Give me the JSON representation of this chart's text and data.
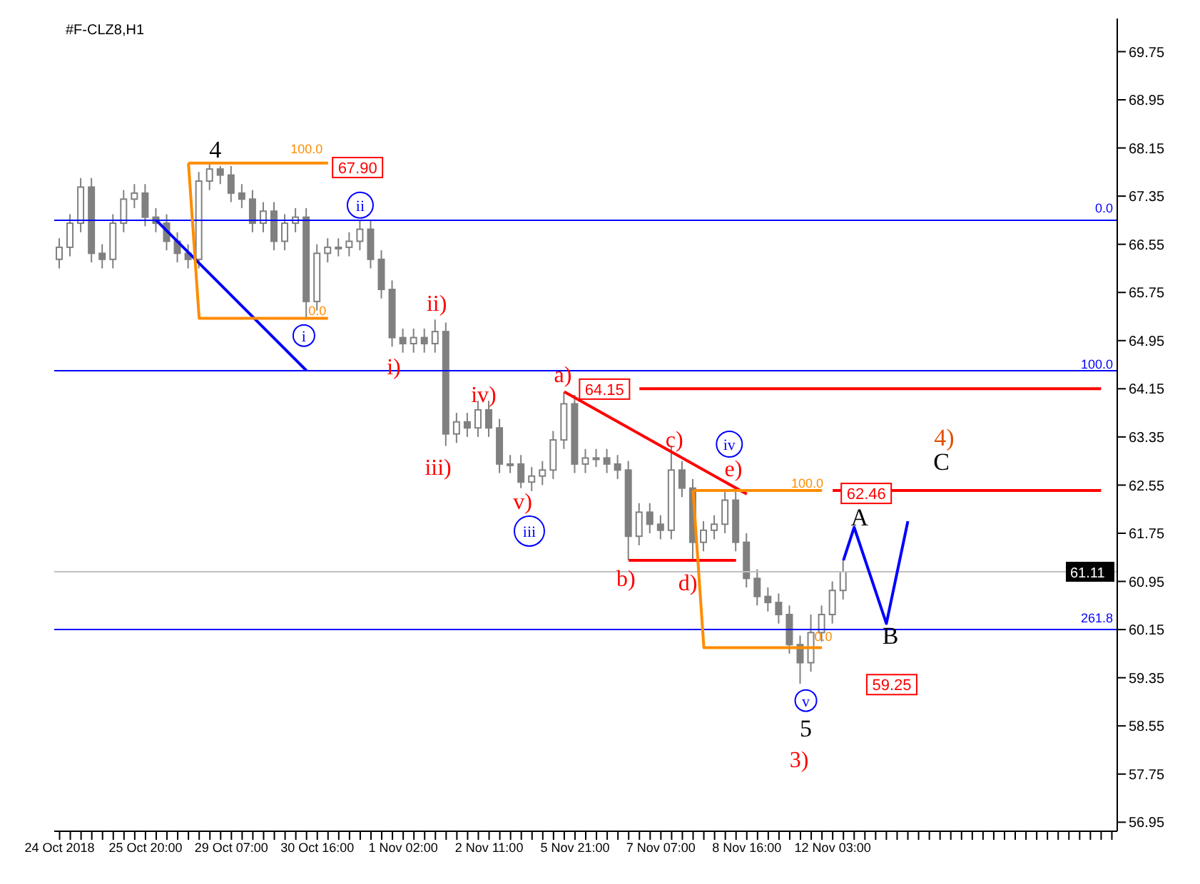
{
  "chart_data": {
    "type": "candlestick",
    "title": "#F-CLZ8,H1",
    "color": "#808080",
    "categories": [
      "24 Oct 2018",
      null,
      null,
      null,
      null,
      null,
      null,
      null,
      "25 Oct 20:00",
      null,
      null,
      null,
      null,
      null,
      null,
      null,
      "29 Oct 07:00",
      null,
      null,
      null,
      null,
      null,
      null,
      null,
      "30 Oct 16:00",
      null,
      null,
      null,
      null,
      null,
      null,
      null,
      "1 Nov 02:00",
      null,
      null,
      null,
      null,
      null,
      null,
      null,
      "2 Nov 11:00",
      null,
      null,
      null,
      null,
      null,
      null,
      null,
      "5 Nov 21:00",
      null,
      null,
      null,
      null,
      null,
      null,
      null,
      "7 Nov 07:00",
      null,
      null,
      null,
      null,
      null,
      null,
      null,
      "8 Nov 16:00",
      null,
      null,
      null,
      null,
      null,
      null,
      null,
      "12 Nov 03:00",
      null,
      null,
      null,
      null,
      null,
      null,
      null,
      null,
      null,
      null,
      null,
      null,
      null,
      null,
      null,
      null,
      null,
      null,
      null,
      null,
      null,
      null,
      null,
      null,
      null,
      null
    ],
    "ohlc": [
      [
        66.3,
        66.65,
        66.15,
        66.5
      ],
      [
        66.5,
        67.05,
        66.35,
        66.9
      ],
      [
        66.9,
        67.65,
        66.75,
        67.5
      ],
      [
        67.5,
        67.65,
        66.25,
        66.4
      ],
      [
        66.4,
        66.55,
        66.15,
        66.3
      ],
      [
        66.3,
        67.05,
        66.15,
        66.9
      ],
      [
        66.9,
        67.45,
        66.75,
        67.3
      ],
      [
        67.3,
        67.55,
        67.15,
        67.4
      ],
      [
        67.4,
        67.55,
        66.85,
        67.0
      ],
      [
        67.0,
        67.15,
        66.75,
        66.9
      ],
      [
        66.9,
        67.05,
        66.45,
        66.6
      ],
      [
        66.6,
        66.75,
        66.25,
        66.4
      ],
      [
        66.4,
        66.55,
        66.15,
        66.3
      ],
      [
        66.3,
        67.75,
        66.15,
        67.6
      ],
      [
        67.6,
        67.9,
        67.45,
        67.8
      ],
      [
        67.8,
        67.85,
        67.55,
        67.7
      ],
      [
        67.7,
        67.85,
        67.25,
        67.4
      ],
      [
        67.4,
        67.55,
        67.15,
        67.3
      ],
      [
        67.3,
        67.45,
        66.75,
        66.9
      ],
      [
        66.9,
        67.25,
        66.75,
        67.1
      ],
      [
        67.1,
        67.25,
        66.45,
        66.6
      ],
      [
        66.6,
        67.05,
        66.45,
        66.9
      ],
      [
        66.9,
        67.15,
        66.75,
        67.0
      ],
      [
        67.0,
        67.15,
        65.3,
        65.6
      ],
      [
        65.6,
        66.55,
        65.45,
        66.4
      ],
      [
        66.4,
        66.65,
        66.25,
        66.5
      ],
      [
        66.5,
        66.65,
        66.35,
        66.5
      ],
      [
        66.5,
        66.75,
        66.35,
        66.6
      ],
      [
        66.6,
        66.95,
        66.45,
        66.8
      ],
      [
        66.8,
        66.95,
        66.15,
        66.3
      ],
      [
        66.3,
        66.45,
        65.65,
        65.8
      ],
      [
        65.8,
        65.95,
        64.85,
        65.0
      ],
      [
        65.0,
        65.15,
        64.75,
        64.9
      ],
      [
        64.9,
        65.15,
        64.75,
        65.0
      ],
      [
        65.0,
        65.15,
        64.75,
        64.9
      ],
      [
        64.9,
        65.3,
        64.75,
        65.1
      ],
      [
        65.1,
        65.25,
        63.2,
        63.4
      ],
      [
        63.4,
        63.75,
        63.25,
        63.6
      ],
      [
        63.6,
        63.75,
        63.35,
        63.5
      ],
      [
        63.5,
        63.95,
        63.35,
        63.8
      ],
      [
        63.8,
        63.95,
        63.35,
        63.5
      ],
      [
        63.5,
        63.65,
        62.75,
        62.9
      ],
      [
        62.9,
        63.05,
        62.75,
        62.9
      ],
      [
        62.9,
        63.05,
        62.5,
        62.6
      ],
      [
        62.6,
        62.85,
        62.45,
        62.7
      ],
      [
        62.7,
        62.95,
        62.55,
        62.8
      ],
      [
        62.8,
        63.45,
        62.65,
        63.3
      ],
      [
        63.3,
        64.1,
        63.15,
        63.9
      ],
      [
        63.9,
        64.05,
        62.75,
        62.9
      ],
      [
        62.9,
        63.15,
        62.75,
        63.0
      ],
      [
        63.0,
        63.15,
        62.85,
        63.0
      ],
      [
        63.0,
        63.15,
        62.75,
        62.9
      ],
      [
        62.9,
        63.05,
        62.65,
        62.8
      ],
      [
        62.8,
        62.95,
        61.3,
        61.7
      ],
      [
        61.7,
        62.25,
        61.55,
        62.1
      ],
      [
        62.1,
        62.25,
        61.75,
        61.9
      ],
      [
        61.9,
        62.05,
        61.65,
        61.8
      ],
      [
        61.8,
        63.2,
        61.65,
        62.8
      ],
      [
        62.8,
        62.95,
        62.35,
        62.5
      ],
      [
        62.5,
        62.65,
        61.3,
        61.6
      ],
      [
        61.6,
        61.95,
        61.45,
        61.8
      ],
      [
        61.8,
        62.05,
        61.65,
        61.9
      ],
      [
        61.9,
        62.46,
        61.75,
        62.3
      ],
      [
        62.3,
        62.45,
        61.45,
        61.6
      ],
      [
        61.6,
        61.75,
        60.85,
        61.0
      ],
      [
        61.0,
        61.15,
        60.55,
        60.7
      ],
      [
        60.7,
        60.85,
        60.45,
        60.6
      ],
      [
        60.6,
        60.75,
        60.25,
        60.4
      ],
      [
        60.4,
        60.55,
        59.75,
        59.9
      ],
      [
        59.9,
        60.05,
        59.25,
        59.6
      ],
      [
        59.6,
        60.4,
        59.45,
        60.1
      ],
      [
        60.1,
        60.55,
        59.95,
        60.4
      ],
      [
        60.4,
        60.95,
        60.25,
        60.8
      ],
      [
        60.8,
        61.3,
        60.65,
        61.11
      ],
      null,
      null,
      null,
      null,
      null,
      null,
      null,
      null,
      null,
      null,
      null,
      null,
      null,
      null,
      null,
      null,
      null,
      null,
      null,
      null,
      null,
      null,
      null,
      null,
      null
    ],
    "series": [
      {
        "type": "line",
        "color": "#0000ff",
        "values": [
          null,
          null,
          null,
          null,
          null,
          null,
          null,
          null,
          null,
          null,
          null,
          null,
          null,
          null,
          null,
          null,
          null,
          null,
          null,
          null,
          null,
          null,
          null,
          null,
          null,
          null,
          null,
          null,
          null,
          null,
          null,
          null,
          null,
          null,
          null,
          null,
          null,
          null,
          null,
          null,
          null,
          null,
          null,
          null,
          null,
          null,
          null,
          null,
          null,
          null,
          null,
          null,
          null,
          null,
          null,
          null,
          null,
          null,
          null,
          null,
          null,
          null,
          null,
          null,
          null,
          null,
          null,
          null,
          null,
          null,
          null,
          null,
          null,
          61.3,
          61.85,
          null,
          null,
          60.25,
          null,
          61.95,
          null,
          null,
          null,
          null,
          null,
          null,
          null,
          null,
          null,
          null,
          null,
          null,
          null,
          null,
          null,
          null,
          null,
          null,
          null
        ]
      },
      {
        "type": "line",
        "color": "#ff0000",
        "values": [
          null,
          null,
          null,
          null,
          null,
          null,
          null,
          null,
          null,
          null,
          null,
          null,
          null,
          null,
          null,
          null,
          null,
          null,
          null,
          null,
          null,
          null,
          null,
          null,
          null,
          null,
          null,
          null,
          null,
          null,
          null,
          null,
          null,
          null,
          null,
          null,
          null,
          null,
          null,
          null,
          null,
          null,
          null,
          null,
          null,
          null,
          null,
          64.1,
          null,
          null,
          null,
          null,
          null,
          null,
          null,
          null,
          null,
          null,
          null,
          null,
          null,
          null,
          null,
          null,
          62.4,
          null,
          null,
          null,
          null,
          null,
          null,
          null,
          null,
          null,
          null,
          null,
          null,
          null,
          null,
          null,
          null,
          null,
          null,
          null,
          null,
          null,
          null,
          null,
          null,
          null,
          null,
          null,
          null,
          null,
          null,
          null,
          null,
          null,
          null
        ]
      },
      {
        "type": "line",
        "color": "#ff0000",
        "values": [
          null,
          null,
          null,
          null,
          null,
          null,
          null,
          null,
          null,
          null,
          null,
          null,
          null,
          null,
          null,
          null,
          null,
          null,
          null,
          null,
          null,
          null,
          null,
          null,
          null,
          null,
          null,
          null,
          null,
          null,
          null,
          null,
          null,
          null,
          null,
          null,
          null,
          null,
          null,
          null,
          null,
          null,
          null,
          null,
          null,
          null,
          null,
          null,
          null,
          null,
          null,
          null,
          null,
          61.3,
          null,
          null,
          null,
          null,
          null,
          null,
          null,
          null,
          null,
          61.3,
          null,
          null,
          null,
          null,
          null,
          null,
          null,
          null,
          null,
          null,
          null,
          null,
          null,
          null,
          null,
          null,
          null,
          null,
          null,
          null,
          null,
          null,
          null,
          null,
          null,
          null,
          null,
          null,
          null,
          null,
          null,
          null,
          null,
          null,
          null
        ]
      },
      {
        "type": "line",
        "color": "#0000ff",
        "values": [
          null,
          null,
          null,
          null,
          null,
          null,
          null,
          null,
          null,
          66.95,
          null,
          null,
          null,
          null,
          null,
          null,
          null,
          null,
          null,
          null,
          null,
          null,
          null,
          64.45,
          null,
          null,
          null,
          null,
          null,
          null,
          null,
          null,
          null,
          null,
          null,
          null,
          null,
          null,
          null,
          null,
          null,
          null,
          null,
          null,
          null,
          null,
          null,
          null,
          null,
          null,
          null,
          null,
          null,
          null,
          null,
          null,
          null,
          null,
          null,
          null,
          null,
          null,
          null,
          null,
          null,
          null,
          null,
          null,
          null,
          null,
          null,
          null,
          null,
          null,
          null,
          null,
          null,
          null,
          null,
          null,
          null,
          null,
          null,
          null,
          null,
          null,
          null,
          null,
          null,
          null,
          null,
          null,
          null,
          null,
          null,
          null,
          null,
          null,
          null
        ]
      },
      {
        "type": "line",
        "color": "#ff8c00",
        "values": [
          null,
          null,
          null,
          null,
          null,
          null,
          null,
          null,
          null,
          null,
          null,
          null,
          67.9,
          null,
          null,
          null,
          null,
          null,
          null,
          null,
          null,
          null,
          null,
          null,
          null,
          67.9,
          null,
          null,
          null,
          null,
          null,
          null,
          null,
          null,
          null,
          null,
          null,
          null,
          null,
          null,
          null,
          null,
          null,
          null,
          null,
          null,
          null,
          null,
          null,
          null,
          null,
          null,
          null,
          null,
          null,
          null,
          null,
          null,
          null,
          null,
          null,
          null,
          null,
          null,
          null,
          null,
          null,
          null,
          null,
          null,
          null,
          null,
          null,
          null,
          null,
          null,
          null,
          null,
          null,
          null,
          null,
          null,
          null,
          null,
          null,
          null,
          null,
          null,
          null,
          null,
          null,
          null,
          null,
          null,
          null,
          null,
          null,
          null,
          null
        ]
      },
      {
        "type": "line",
        "color": "#ff8c00",
        "values": [
          null,
          null,
          null,
          null,
          null,
          null,
          null,
          null,
          null,
          null,
          null,
          null,
          67.9,
          65.32,
          null,
          null,
          null,
          null,
          null,
          null,
          null,
          null,
          null,
          null,
          null,
          65.32,
          null,
          null,
          null,
          null,
          null,
          null,
          null,
          null,
          null,
          null,
          null,
          null,
          null,
          null,
          null,
          null,
          null,
          null,
          null,
          null,
          null,
          null,
          null,
          null,
          null,
          null,
          null,
          null,
          null,
          null,
          null,
          null,
          null,
          null,
          null,
          null,
          null,
          null,
          null,
          null,
          null,
          null,
          null,
          null,
          null,
          null,
          null,
          null,
          null,
          null,
          null,
          null,
          null,
          null,
          null,
          null,
          null,
          null,
          null,
          null,
          null,
          null,
          null,
          null,
          null,
          null,
          null,
          null,
          null,
          null,
          null,
          null,
          null
        ]
      },
      {
        "type": "line",
        "color": "#ff8c00",
        "values": [
          null,
          null,
          null,
          null,
          null,
          null,
          null,
          null,
          null,
          null,
          null,
          null,
          null,
          null,
          null,
          null,
          null,
          null,
          null,
          null,
          null,
          null,
          null,
          null,
          null,
          null,
          null,
          null,
          null,
          null,
          null,
          null,
          null,
          null,
          null,
          null,
          null,
          null,
          null,
          null,
          null,
          null,
          null,
          null,
          null,
          null,
          null,
          null,
          null,
          null,
          null,
          null,
          null,
          null,
          null,
          null,
          null,
          null,
          null,
          62.46,
          null,
          null,
          null,
          null,
          null,
          null,
          null,
          null,
          null,
          null,
          null,
          62.46,
          null,
          null,
          null,
          null,
          null,
          null,
          null,
          null,
          null,
          null,
          null,
          null,
          null,
          null,
          null,
          null,
          null,
          null,
          null,
          null,
          null,
          null,
          null,
          null,
          null,
          null,
          null
        ]
      },
      {
        "type": "line",
        "color": "#ff8c00",
        "values": [
          null,
          null,
          null,
          null,
          null,
          null,
          null,
          null,
          null,
          null,
          null,
          null,
          null,
          null,
          null,
          null,
          null,
          null,
          null,
          null,
          null,
          null,
          null,
          null,
          null,
          null,
          null,
          null,
          null,
          null,
          null,
          null,
          null,
          null,
          null,
          null,
          null,
          null,
          null,
          null,
          null,
          null,
          null,
          null,
          null,
          null,
          null,
          null,
          null,
          null,
          null,
          null,
          null,
          null,
          null,
          null,
          null,
          null,
          null,
          62.46,
          59.85,
          null,
          null,
          null,
          null,
          null,
          null,
          null,
          null,
          null,
          null,
          59.85,
          null,
          null,
          null,
          null,
          null,
          null,
          null,
          null,
          null,
          null,
          null,
          null,
          null,
          null,
          null,
          null,
          null,
          null,
          null,
          null,
          null,
          null,
          null,
          null,
          null,
          null,
          null
        ]
      },
      {
        "type": "line",
        "color": "#ff0000",
        "values": [
          null,
          null,
          null,
          null,
          null,
          null,
          null,
          null,
          null,
          null,
          null,
          null,
          null,
          null,
          null,
          null,
          null,
          null,
          null,
          null,
          null,
          null,
          null,
          null,
          null,
          null,
          null,
          null,
          null,
          null,
          null,
          null,
          null,
          null,
          null,
          null,
          null,
          null,
          null,
          null,
          null,
          null,
          null,
          null,
          null,
          null,
          null,
          null,
          null,
          null,
          null,
          null,
          null,
          null,
          64.15,
          null,
          null,
          null,
          null,
          null,
          null,
          null,
          null,
          null,
          null,
          null,
          null,
          null,
          null,
          null,
          null,
          null,
          null,
          null,
          null,
          null,
          null,
          null,
          null,
          null,
          null,
          null,
          null,
          null,
          null,
          null,
          null,
          null,
          null,
          null,
          null,
          null,
          null,
          null,
          null,
          null,
          null,
          64.15,
          null
        ]
      },
      {
        "type": "line",
        "color": "#ff0000",
        "values": [
          null,
          null,
          null,
          null,
          null,
          null,
          null,
          null,
          null,
          null,
          null,
          null,
          null,
          null,
          null,
          null,
          null,
          null,
          null,
          null,
          null,
          null,
          null,
          null,
          null,
          null,
          null,
          null,
          null,
          null,
          null,
          null,
          null,
          null,
          null,
          null,
          null,
          null,
          null,
          null,
          null,
          null,
          null,
          null,
          null,
          null,
          null,
          null,
          null,
          null,
          null,
          null,
          null,
          null,
          null,
          null,
          null,
          null,
          null,
          null,
          null,
          null,
          null,
          null,
          null,
          null,
          null,
          null,
          null,
          null,
          null,
          null,
          62.46,
          null,
          null,
          null,
          null,
          null,
          null,
          null,
          null,
          null,
          null,
          null,
          null,
          null,
          null,
          null,
          null,
          null,
          null,
          null,
          null,
          null,
          null,
          null,
          null,
          62.46,
          null
        ]
      }
    ],
    "ylim": [
      56.8,
      70.3
    ],
    "yticks": [
      56.95,
      57.75,
      58.55,
      59.35,
      60.15,
      60.95,
      61.75,
      62.55,
      63.35,
      64.15,
      64.95,
      65.75,
      66.55,
      67.35,
      68.15,
      68.95,
      69.75
    ],
    "ref_lines": [
      {
        "axis": "y",
        "value": 66.95,
        "color": "#0000ff"
      },
      {
        "axis": "y",
        "value": 64.45,
        "color": "#0000ff"
      },
      {
        "axis": "y",
        "value": 60.15,
        "color": "#0000ff"
      },
      {
        "axis": "y",
        "value": 61.11,
        "label": "61.11",
        "color": "#c0c0c0"
      }
    ],
    "annotations": [
      "4",
      "100.0",
      "67.90",
      "0.0",
      "i",
      "ii",
      "i)",
      "ii)",
      "iii)",
      "iv)",
      "v)",
      "iii",
      "a)",
      "64.15",
      "b)",
      "c)",
      "d)",
      "iv",
      "e)",
      "100.0",
      "0.0",
      "v",
      "5",
      "3)",
      "62.46",
      "A",
      "B",
      "59.25",
      "4)",
      "C",
      "0.0",
      "100.0",
      "261.8"
    ],
    "grid": false
  }
}
